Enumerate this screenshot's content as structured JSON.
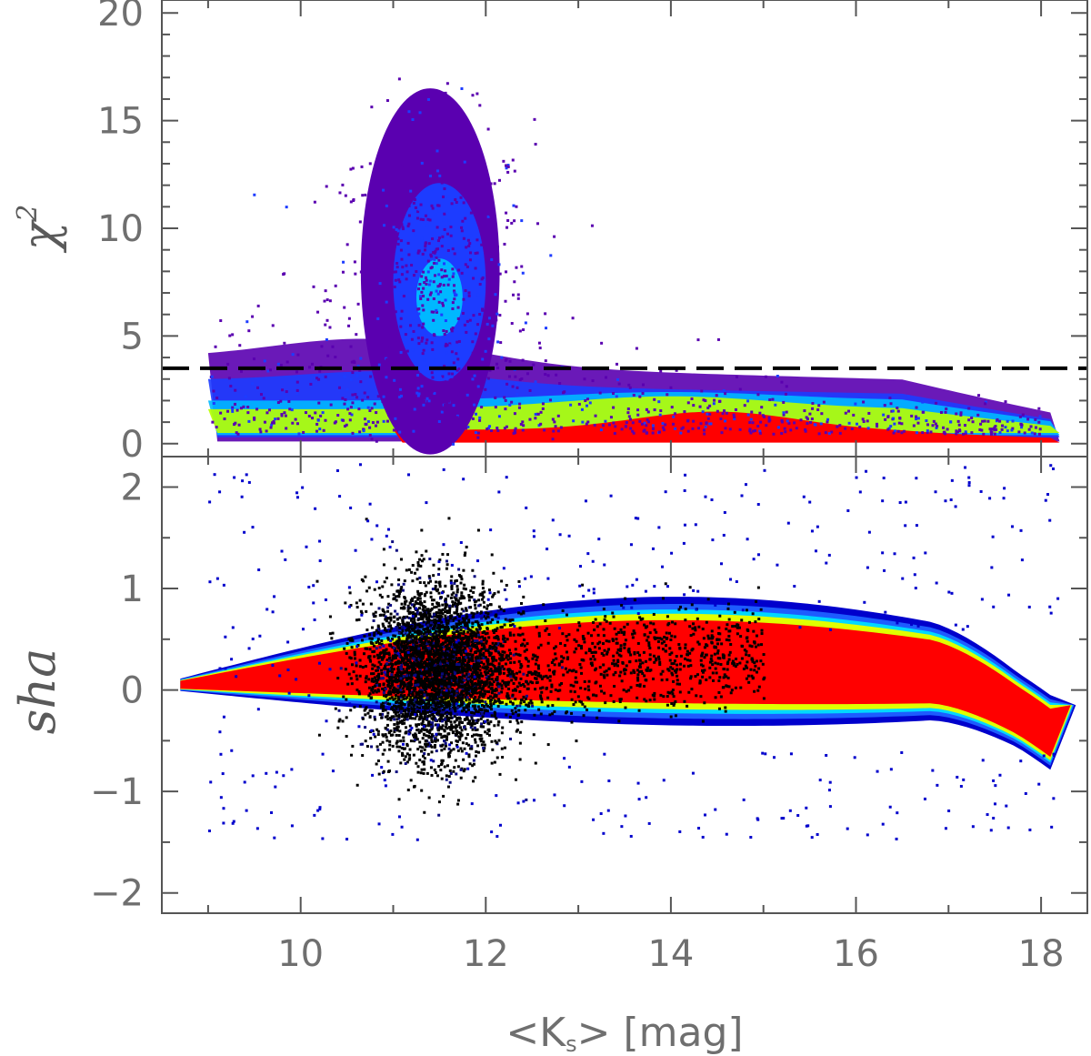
{
  "chart_data": [
    {
      "panel": "top",
      "type": "scatter",
      "ylabel": "χ",
      "ylabel_superscript": "2",
      "xlim": [
        8.5,
        18.5
      ],
      "ylim": [
        -0.6,
        20.6
      ],
      "yticks": [
        0,
        5,
        10,
        15,
        20
      ],
      "ytick_labels": [
        "0",
        "5",
        "10",
        "15",
        "20"
      ],
      "reference_line": {
        "y": 3.5,
        "style": "dashed",
        "color": "#000000"
      },
      "density_colormap": [
        "#5a00b0",
        "#1d3cff",
        "#00b8ff",
        "#00ff9a",
        "#b8ff00",
        "#ffcc00",
        "#ff0000"
      ],
      "point_density": "2D histogram, rainbow colour scale"
    },
    {
      "panel": "bottom",
      "type": "scatter",
      "ylabel": "sha",
      "xlabel": "<Ks> [mag]",
      "xlabel_parts": {
        "left": "<K",
        "sub": "s",
        "right": "> [mag]"
      },
      "xlim": [
        8.5,
        18.5
      ],
      "ylim": [
        -2.2,
        2.3
      ],
      "yticks": [
        -2,
        -1,
        0,
        1,
        2
      ],
      "ytick_labels": [
        "−2",
        "−1",
        "0",
        "1",
        "2"
      ],
      "xticks": [
        10,
        12,
        14,
        16,
        18
      ],
      "xtick_labels": [
        "10",
        "12",
        "14",
        "16",
        "18"
      ],
      "density_colormap": [
        "#000033",
        "#0000cc",
        "#1d5cff",
        "#00d8ff",
        "#00ff80",
        "#e0ff00",
        "#ff0000"
      ],
      "point_density": "2D histogram, rainbow colour scale, black outlier stars near Ks≈11.5"
    }
  ]
}
